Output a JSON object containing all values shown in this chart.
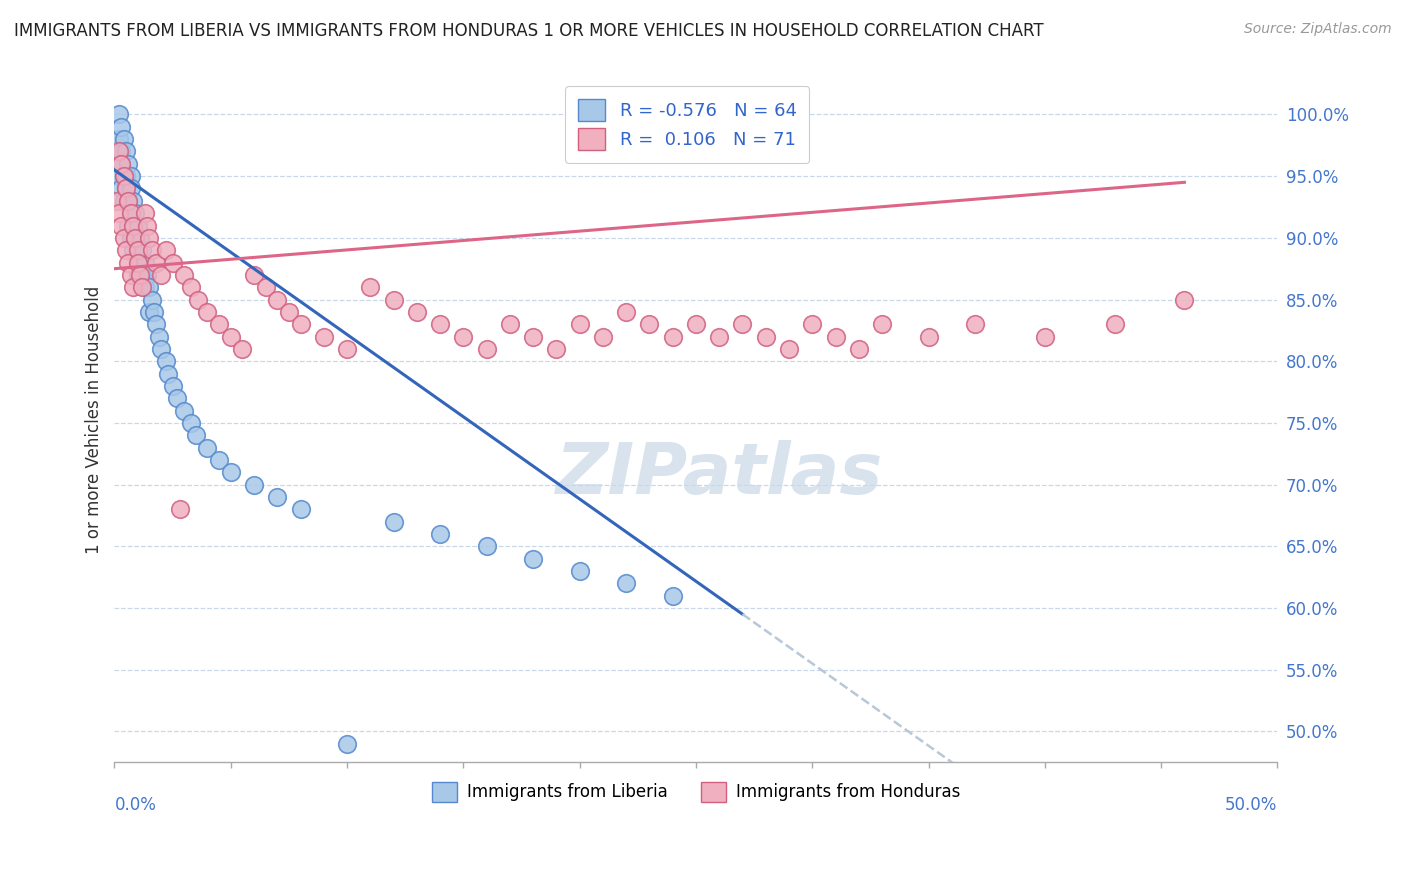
{
  "title": "IMMIGRANTS FROM LIBERIA VS IMMIGRANTS FROM HONDURAS 1 OR MORE VEHICLES IN HOUSEHOLD CORRELATION CHART",
  "source": "Source: ZipAtlas.com",
  "ylabel": "1 or more Vehicles in Household",
  "xlim": [
    0.0,
    0.5
  ],
  "ylim": [
    0.475,
    1.03
  ],
  "yticks": [
    0.5,
    0.55,
    0.6,
    0.65,
    0.7,
    0.75,
    0.8,
    0.85,
    0.9,
    0.95,
    1.0
  ],
  "ytick_labels": [
    "50.0%",
    "55.0%",
    "60.0%",
    "65.0%",
    "70.0%",
    "75.0%",
    "80.0%",
    "85.0%",
    "90.0%",
    "95.0%",
    "100.0%"
  ],
  "R_liberia": -0.576,
  "N_liberia": 64,
  "R_honduras": 0.106,
  "N_honduras": 71,
  "color_liberia_fill": "#a8c8e8",
  "color_liberia_edge": "#5588cc",
  "color_honduras_fill": "#f0b0c0",
  "color_honduras_edge": "#d06080",
  "color_liberia_line": "#3366bb",
  "color_honduras_line": "#dd6688",
  "color_extrapolate": "#b8c8d8",
  "watermark_text": "ZIPatlas",
  "watermark_color": "#c8d8e8",
  "background_color": "#ffffff",
  "grid_color": "#c8d8e8",
  "tick_color": "#4477cc",
  "title_color": "#222222",
  "source_color": "#999999",
  "liberia_x": [
    0.001,
    0.002,
    0.002,
    0.002,
    0.003,
    0.003,
    0.003,
    0.003,
    0.004,
    0.004,
    0.004,
    0.005,
    0.005,
    0.005,
    0.006,
    0.006,
    0.006,
    0.007,
    0.007,
    0.007,
    0.007,
    0.008,
    0.008,
    0.008,
    0.009,
    0.009,
    0.01,
    0.01,
    0.01,
    0.011,
    0.011,
    0.012,
    0.012,
    0.013,
    0.013,
    0.014,
    0.015,
    0.015,
    0.016,
    0.017,
    0.018,
    0.019,
    0.02,
    0.022,
    0.023,
    0.025,
    0.027,
    0.03,
    0.033,
    0.035,
    0.04,
    0.045,
    0.05,
    0.06,
    0.07,
    0.08,
    0.1,
    0.12,
    0.14,
    0.16,
    0.18,
    0.2,
    0.22,
    0.24
  ],
  "liberia_y": [
    0.97,
    0.98,
    0.95,
    1.0,
    0.96,
    0.94,
    0.99,
    0.97,
    0.95,
    0.98,
    0.93,
    0.97,
    0.95,
    0.94,
    0.96,
    0.93,
    0.91,
    0.95,
    0.94,
    0.92,
    0.9,
    0.93,
    0.91,
    0.89,
    0.92,
    0.9,
    0.91,
    0.89,
    0.87,
    0.9,
    0.88,
    0.89,
    0.87,
    0.88,
    0.86,
    0.87,
    0.86,
    0.84,
    0.85,
    0.84,
    0.83,
    0.82,
    0.81,
    0.8,
    0.79,
    0.78,
    0.77,
    0.76,
    0.75,
    0.74,
    0.73,
    0.72,
    0.71,
    0.7,
    0.69,
    0.68,
    0.49,
    0.67,
    0.66,
    0.65,
    0.64,
    0.63,
    0.62,
    0.61
  ],
  "honduras_x": [
    0.001,
    0.002,
    0.002,
    0.003,
    0.003,
    0.004,
    0.004,
    0.005,
    0.005,
    0.006,
    0.006,
    0.007,
    0.007,
    0.008,
    0.008,
    0.009,
    0.01,
    0.01,
    0.011,
    0.012,
    0.013,
    0.014,
    0.015,
    0.016,
    0.018,
    0.02,
    0.022,
    0.025,
    0.028,
    0.03,
    0.033,
    0.036,
    0.04,
    0.045,
    0.05,
    0.055,
    0.06,
    0.065,
    0.07,
    0.075,
    0.08,
    0.09,
    0.1,
    0.11,
    0.12,
    0.13,
    0.14,
    0.15,
    0.16,
    0.17,
    0.18,
    0.19,
    0.2,
    0.21,
    0.22,
    0.23,
    0.24,
    0.25,
    0.26,
    0.27,
    0.28,
    0.29,
    0.3,
    0.31,
    0.32,
    0.33,
    0.35,
    0.37,
    0.4,
    0.43,
    0.46
  ],
  "honduras_y": [
    0.93,
    0.97,
    0.92,
    0.96,
    0.91,
    0.95,
    0.9,
    0.94,
    0.89,
    0.93,
    0.88,
    0.92,
    0.87,
    0.91,
    0.86,
    0.9,
    0.89,
    0.88,
    0.87,
    0.86,
    0.92,
    0.91,
    0.9,
    0.89,
    0.88,
    0.87,
    0.89,
    0.88,
    0.68,
    0.87,
    0.86,
    0.85,
    0.84,
    0.83,
    0.82,
    0.81,
    0.87,
    0.86,
    0.85,
    0.84,
    0.83,
    0.82,
    0.81,
    0.86,
    0.85,
    0.84,
    0.83,
    0.82,
    0.81,
    0.83,
    0.82,
    0.81,
    0.83,
    0.82,
    0.84,
    0.83,
    0.82,
    0.83,
    0.82,
    0.83,
    0.82,
    0.81,
    0.83,
    0.82,
    0.81,
    0.83,
    0.82,
    0.83,
    0.82,
    0.83,
    0.85
  ]
}
